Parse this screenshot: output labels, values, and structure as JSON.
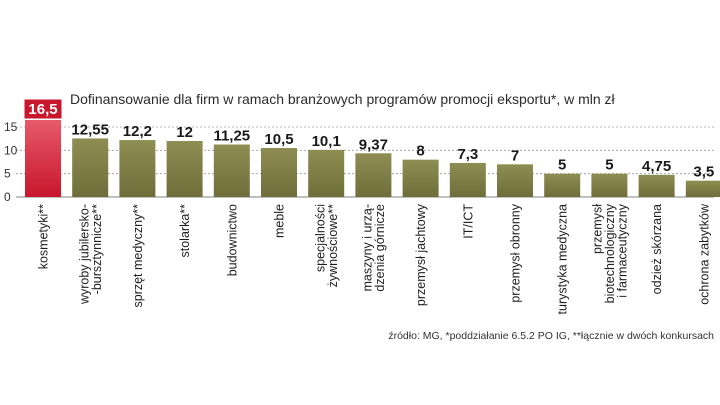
{
  "chart_data": {
    "type": "bar",
    "title": "Dofinansowanie dla firm w ramach branżowych programów promocji eksportu*, w mln zł",
    "categories": [
      [
        "kosmetyki**"
      ],
      [
        "wyroby jubilersko-",
        "-bursztynnicze**"
      ],
      [
        "sprzęt medyczny**"
      ],
      [
        "stolarka**"
      ],
      [
        "budownictwo"
      ],
      [
        "meble"
      ],
      [
        "specjalności",
        "żywnościowe**"
      ],
      [
        "maszyny i urzą-",
        "dzenia górnicze"
      ],
      [
        "przemysł jachtowy"
      ],
      [
        "IT/ICT"
      ],
      [
        "przemysł obronny"
      ],
      [
        "turystyka medyczna"
      ],
      [
        "przemysł",
        "biotechnologiczny",
        "i farmaceutyczny"
      ],
      [
        "odzież skórzana"
      ],
      [
        "ochrona zabytków"
      ]
    ],
    "values": [
      16.5,
      12.55,
      12.2,
      12,
      11.25,
      10.5,
      10.1,
      9.37,
      8,
      7.3,
      7,
      5,
      5,
      4.75,
      3.5
    ],
    "value_labels": [
      "16,5",
      "12,55",
      "12,2",
      "12",
      "11,25",
      "10,5",
      "10,1",
      "9,37",
      "8",
      "7,3",
      "7",
      "5",
      "5",
      "4,75",
      "3,5"
    ],
    "highlight_index": 0,
    "yticks": [
      "0",
      "5",
      "10",
      "15"
    ],
    "ylim": [
      0,
      15
    ],
    "grid": true,
    "xlabel": "",
    "ylabel": ""
  },
  "source_note": "źródło: MG, *poddziałanie 6.5.2 PO IG, **łącznie w dwóch konkursach",
  "colors": {
    "bar": "#7b7a42",
    "bar_top": "#8e8d52",
    "highlight": "#c8162c",
    "highlight_top": "#e65a6a",
    "grid": "#9a9a9a",
    "label_box": "#c8162c"
  }
}
